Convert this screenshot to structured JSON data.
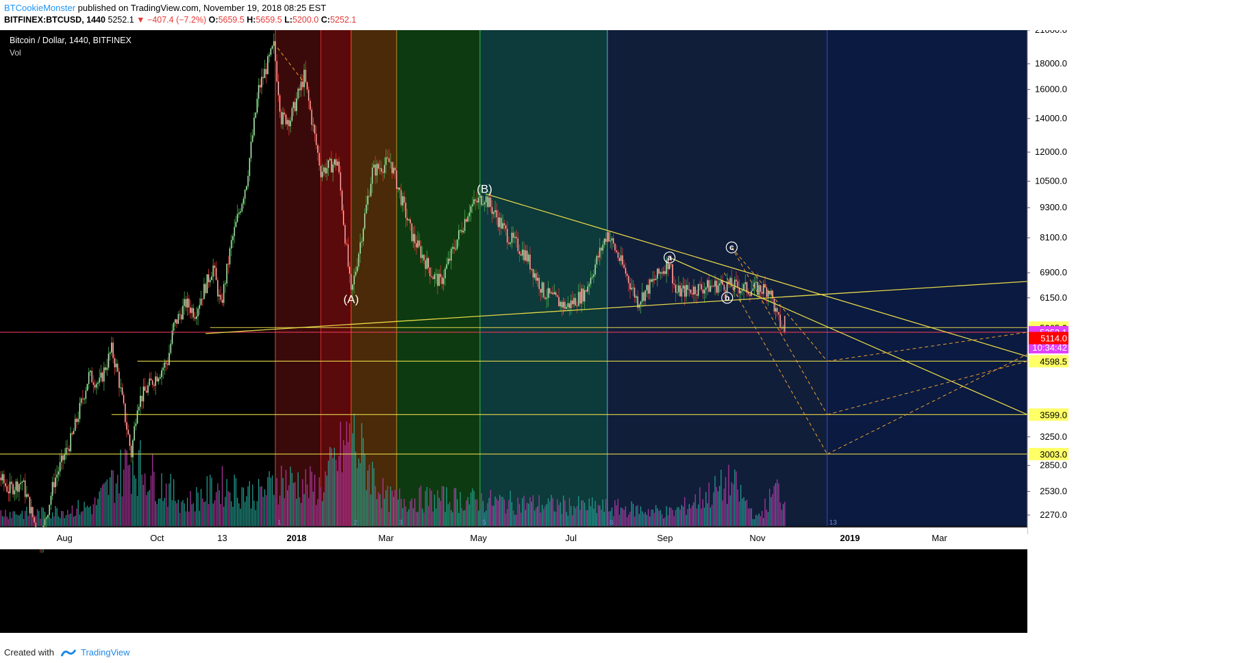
{
  "header": {
    "author": "BTCookieMonster",
    "published": "published on TradingView.com, November 19, 2018 08:25 EST",
    "symbol": "BITFINEX:BTCUSD, 1440",
    "last": "5252.1",
    "change": "−407.4 (−7.2%)",
    "open_label": "O:",
    "open": "5659.5",
    "high_label": "H:",
    "high": "5659.5",
    "low_label": "L:",
    "low": "5200.0",
    "close_label": "C:",
    "close": "5252.1"
  },
  "chart_title": "Bitcoin / Dollar, 1440, BITFINEX",
  "vol_label": "Vol",
  "footer": {
    "created_with": "Created with",
    "brand": "TradingView"
  },
  "colors": {
    "up": "#4caf50",
    "down": "#e53935",
    "trendline": "#e6d84a",
    "fib": "#f0a030",
    "vol_up": "#26a69a",
    "vol_down": "#b73aa8",
    "price_tag_current": "#e040fb",
    "price_tag_red": "#ff0000",
    "price_tag_yellow": "#ffff66"
  },
  "chart_data": {
    "type": "candlestick",
    "title": "Bitcoin / Dollar, 1440, BITFINEX",
    "scale": "log",
    "y_ticks": [
      21000,
      18000,
      16000,
      14000,
      12000,
      10500,
      9300,
      8100,
      6900,
      6150,
      5365.3,
      5252.1,
      5114.0,
      4598.5,
      3599.0,
      3250,
      3003.0,
      2850,
      2530,
      2270
    ],
    "y_tick_labels": [
      "21000.0",
      "18000.0",
      "16000.0",
      "14000.0",
      "12000.0",
      "10500.0",
      "9300.0",
      "8100.0",
      "6900.0",
      "6150.0",
      "3250.0",
      "2850.0",
      "2530.0",
      "2270.0"
    ],
    "x_tick_labels": [
      "Aug",
      "Oct",
      "13",
      "2018",
      "Mar",
      "May",
      "Jul",
      "Sep",
      "Nov",
      "2019",
      "Mar"
    ],
    "price_tags": [
      {
        "label": "5365.3",
        "value": 5365.3,
        "style": "yellow"
      },
      {
        "label": "5252.1",
        "value": 5252.1,
        "style": "current"
      },
      {
        "label": "10:34:42",
        "value": null,
        "style": "current"
      },
      {
        "label": "5114.0",
        "value": 5114.0,
        "style": "red"
      },
      {
        "label": "4598.5",
        "value": 4598.5,
        "style": "yellow"
      },
      {
        "label": "3599.0",
        "value": 3599.0,
        "style": "yellow"
      },
      {
        "label": "3003.0",
        "value": 3003.0,
        "style": "yellow"
      }
    ],
    "annotations": [
      {
        "text": "(A)",
        "x": "2018-02-06",
        "y": 6000
      },
      {
        "text": "(B)",
        "x": "2018-05-05",
        "y": 9950
      },
      {
        "text": "a",
        "x": "2018-09-04",
        "y": 7400,
        "circled": true
      },
      {
        "text": "b",
        "x": "2018-10-12",
        "y": 6150,
        "circled": true
      },
      {
        "text": "c",
        "x": "2018-10-15",
        "y": 7750,
        "circled": true
      }
    ],
    "cycle_labels": [
      {
        "text": "1",
        "x": "2017-12-18"
      },
      {
        "text": "2",
        "x": "2018-02-06"
      },
      {
        "text": "3",
        "x": "2018-03-08"
      },
      {
        "text": "5",
        "x": "2018-05-02"
      },
      {
        "text": "8",
        "x": "2018-07-25"
      },
      {
        "text": "13",
        "x": "2018-12-17"
      }
    ],
    "time_bands": [
      {
        "from": "2017-12-18",
        "to": "2018-01-17",
        "color": "#3a0a0a"
      },
      {
        "from": "2018-01-17",
        "to": "2018-02-06",
        "color": "#5a0a0a"
      },
      {
        "from": "2018-02-06",
        "to": "2018-03-08",
        "color": "#4a2a08"
      },
      {
        "from": "2018-03-08",
        "to": "2018-05-02",
        "color": "#0d3a10"
      },
      {
        "from": "2018-05-02",
        "to": "2018-07-25",
        "color": "#0d3a3a"
      },
      {
        "from": "2018-07-25",
        "to": "2018-12-17",
        "color": "#101e3a"
      },
      {
        "from": "2018-12-17",
        "to": "2019-04-30",
        "color": "#0a1a40"
      }
    ],
    "vertical_lines": [
      {
        "x": "2017-12-18",
        "color": "#d05050"
      },
      {
        "x": "2018-01-17",
        "color": "#d03030"
      },
      {
        "x": "2018-02-06",
        "color": "#ff5020"
      },
      {
        "x": "2018-03-08",
        "color": "#c09030"
      },
      {
        "x": "2018-05-02",
        "color": "#40c040"
      },
      {
        "x": "2018-07-25",
        "color": "#40c0e0"
      },
      {
        "x": "2018-12-17",
        "color": "#3050d0"
      }
    ],
    "horizontal_lines": [
      {
        "y": 5365.3,
        "from": "2017-11-05",
        "color": "#e6d84a"
      },
      {
        "y": 5252.1,
        "from": "2017-06-01",
        "color": "#e53935"
      },
      {
        "y": 4598.5,
        "from": "2017-09-18",
        "color": "#e6d84a"
      },
      {
        "y": 3599.0,
        "from": "2017-09-01",
        "color": "#e6d84a"
      },
      {
        "y": 3003.0,
        "from": "2017-06-01",
        "color": "#e6d84a"
      }
    ],
    "trendlines": [
      {
        "from": [
          "2017-11-02",
          5220
        ],
        "to": [
          "2019-04-30",
          6630
        ],
        "style": "solid"
      },
      {
        "from": [
          "2018-05-06",
          9900
        ],
        "to": [
          "2019-04-30",
          4700
        ],
        "style": "solid"
      },
      {
        "from": [
          "2018-09-04",
          7400
        ],
        "to": [
          "2019-04-30",
          3599
        ],
        "style": "solid"
      },
      {
        "from": [
          "2017-12-17",
          19800
        ],
        "to": [
          "2018-01-06",
          16500
        ],
        "style": "dashed"
      },
      {
        "from": [
          "2018-10-15",
          7750
        ],
        "to": [
          "2018-12-17",
          3599
        ],
        "style": "dashed"
      },
      {
        "from": [
          "2018-10-15",
          7750
        ],
        "to": [
          "2018-12-17",
          4598.5
        ],
        "style": "dashed"
      },
      {
        "from": [
          "2018-10-10",
          6900
        ],
        "to": [
          "2018-12-17",
          3003
        ],
        "style": "dashed"
      },
      {
        "from": [
          "2018-12-17",
          4598.5
        ],
        "to": [
          "2019-04-30",
          5252.1
        ],
        "style": "dashed"
      },
      {
        "from": [
          "2018-12-17",
          3599
        ],
        "to": [
          "2019-04-30",
          4598.5
        ],
        "style": "dashed"
      },
      {
        "from": [
          "2018-12-17",
          3003
        ],
        "to": [
          "2019-04-30",
          4750
        ],
        "style": "dashed"
      }
    ],
    "price_path": [
      [
        "2017-06-01",
        2450
      ],
      [
        "2017-06-12",
        2900
      ],
      [
        "2017-06-25",
        2550
      ],
      [
        "2017-07-04",
        2650
      ],
      [
        "2017-07-16",
        2000
      ],
      [
        "2017-07-25",
        2650
      ],
      [
        "2017-08-06",
        3250
      ],
      [
        "2017-08-17",
        4300
      ],
      [
        "2017-08-24",
        4150
      ],
      [
        "2017-09-01",
        4850
      ],
      [
        "2017-09-05",
        4350
      ],
      [
        "2017-09-14",
        3000
      ],
      [
        "2017-09-18",
        3800
      ],
      [
        "2017-09-28",
        4200
      ],
      [
        "2017-10-08",
        4600
      ],
      [
        "2017-10-12",
        5400
      ],
      [
        "2017-10-20",
        6000
      ],
      [
        "2017-10-26",
        5750
      ],
      [
        "2017-11-07",
        7100
      ],
      [
        "2017-11-12",
        5900
      ],
      [
        "2017-11-19",
        7900
      ],
      [
        "2017-11-29",
        10500
      ],
      [
        "2017-12-07",
        16000
      ],
      [
        "2017-12-17",
        19500
      ],
      [
        "2017-12-22",
        14000
      ],
      [
        "2017-12-28",
        14000
      ],
      [
        "2018-01-06",
        17000
      ],
      [
        "2018-01-17",
        11000
      ],
      [
        "2018-01-28",
        11500
      ],
      [
        "2018-02-06",
        6200
      ],
      [
        "2018-02-20",
        11000
      ],
      [
        "2018-03-04",
        11500
      ],
      [
        "2018-03-18",
        8200
      ],
      [
        "2018-04-01",
        6800
      ],
      [
        "2018-04-06",
        6600
      ],
      [
        "2018-04-25",
        9300
      ],
      [
        "2018-05-05",
        9800
      ],
      [
        "2018-05-20",
        8200
      ],
      [
        "2018-06-01",
        7500
      ],
      [
        "2018-06-13",
        6300
      ],
      [
        "2018-06-28",
        5900
      ],
      [
        "2018-07-10",
        6300
      ],
      [
        "2018-07-25",
        8300
      ],
      [
        "2018-08-06",
        6900
      ],
      [
        "2018-08-14",
        6050
      ],
      [
        "2018-09-04",
        7300
      ],
      [
        "2018-09-08",
        6300
      ],
      [
        "2018-09-20",
        6400
      ],
      [
        "2018-10-10",
        6550
      ],
      [
        "2018-10-15",
        6500
      ],
      [
        "2018-10-25",
        6400
      ],
      [
        "2018-11-09",
        6400
      ],
      [
        "2018-11-14",
        5600
      ],
      [
        "2018-11-19",
        5252.1
      ]
    ],
    "volume_profile": [
      [
        "2017-06-01",
        0.16
      ],
      [
        "2017-07-15",
        0.14
      ],
      [
        "2017-08-20",
        0.22
      ],
      [
        "2017-09-14",
        0.74
      ],
      [
        "2017-10-20",
        0.25
      ],
      [
        "2017-11-12",
        0.45
      ],
      [
        "2017-12-07",
        0.35
      ],
      [
        "2017-12-22",
        0.52
      ],
      [
        "2018-01-17",
        0.42
      ],
      [
        "2018-02-06",
        1.0
      ],
      [
        "2018-03-01",
        0.3
      ],
      [
        "2018-04-12",
        0.3
      ],
      [
        "2018-06-01",
        0.25
      ],
      [
        "2018-08-01",
        0.2
      ],
      [
        "2018-09-06",
        0.15
      ],
      [
        "2018-10-15",
        0.48
      ],
      [
        "2018-11-01",
        0.08
      ],
      [
        "2018-11-14",
        0.42
      ],
      [
        "2018-11-19",
        0.25
      ]
    ]
  }
}
